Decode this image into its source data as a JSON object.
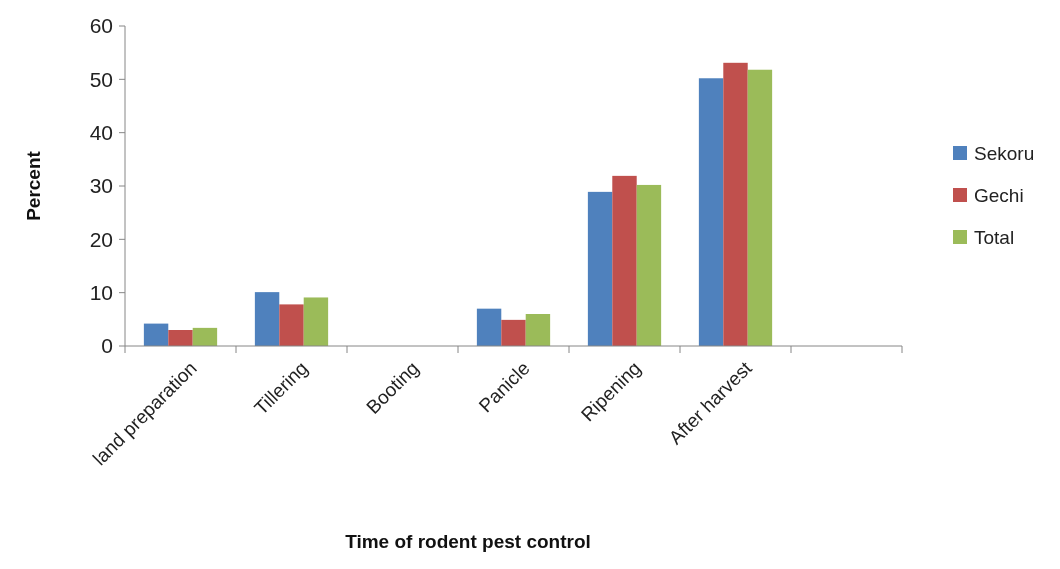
{
  "chart_data": {
    "type": "bar",
    "xlabel": "Time of rodent pest control",
    "ylabel": "Percent",
    "categories": [
      "land preparation",
      "Tillering",
      "Booting",
      "Panicle",
      "Ripening",
      "After harvest",
      null
    ],
    "series": [
      {
        "name": "Sekoru",
        "color": "#4f81bd",
        "values": [
          4.2,
          10.1,
          null,
          7.0,
          28.9,
          50.2,
          null
        ]
      },
      {
        "name": "Gechi",
        "color": "#c0504d",
        "values": [
          3.0,
          7.8,
          null,
          4.9,
          31.9,
          53.1,
          null
        ]
      },
      {
        "name": "Total",
        "color": "#9bbb59",
        "values": [
          3.4,
          9.1,
          null,
          6.0,
          30.2,
          51.8,
          null
        ]
      }
    ],
    "ylim": [
      0,
      60
    ],
    "yticks": [
      0,
      10,
      20,
      30,
      40,
      50,
      60
    ],
    "grid": false,
    "legend": "right"
  }
}
